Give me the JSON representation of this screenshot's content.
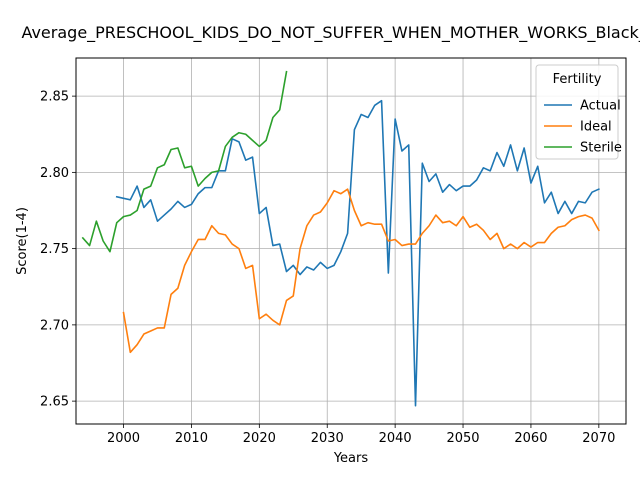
{
  "chart_data": {
    "type": "line",
    "title": "Average_PRESCHOOL_KIDS_DO_NOT_SUFFER_WHEN_MOTHER_WORKS_Black_Men",
    "xlabel": "Years",
    "ylabel": "Score(1-4)",
    "xlim": [
      1993,
      2074
    ],
    "ylim": [
      2.635,
      2.875
    ],
    "xticks": [
      2000,
      2010,
      2020,
      2030,
      2040,
      2050,
      2060,
      2070
    ],
    "yticks": [
      2.65,
      2.7,
      2.75,
      2.8,
      2.85
    ],
    "ytick_labels": [
      "2.65",
      "2.70",
      "2.75",
      "2.80",
      "2.85"
    ],
    "grid": true,
    "legend": {
      "title": "Fertility",
      "placement": "top-right"
    },
    "series": [
      {
        "name": "Actual",
        "color": "#1f77b4",
        "x": [
          1999,
          2000,
          2001,
          2002,
          2003,
          2004,
          2005,
          2006,
          2007,
          2008,
          2009,
          2010,
          2011,
          2012,
          2013,
          2014,
          2015,
          2016,
          2017,
          2018,
          2019,
          2020,
          2021,
          2022,
          2023,
          2024,
          2025,
          2026,
          2027,
          2028,
          2029,
          2030,
          2031,
          2032,
          2033,
          2034,
          2035,
          2036,
          2037,
          2038,
          2039,
          2040,
          2041,
          2042,
          2043,
          2044,
          2045,
          2046,
          2047,
          2048,
          2049,
          2050,
          2051,
          2052,
          2053,
          2054,
          2055,
          2056,
          2057,
          2058,
          2059,
          2060,
          2061,
          2062,
          2063,
          2064,
          2065,
          2066,
          2067,
          2068,
          2069,
          2070
        ],
        "y": [
          2.784,
          2.783,
          2.782,
          2.791,
          2.777,
          2.782,
          2.768,
          2.772,
          2.776,
          2.781,
          2.777,
          2.779,
          2.786,
          2.79,
          2.79,
          2.801,
          2.801,
          2.822,
          2.82,
          2.808,
          2.81,
          2.773,
          2.777,
          2.752,
          2.753,
          2.735,
          2.739,
          2.733,
          2.738,
          2.736,
          2.741,
          2.737,
          2.739,
          2.748,
          2.76,
          2.828,
          2.838,
          2.836,
          2.844,
          2.847,
          2.734,
          2.835,
          2.814,
          2.818,
          2.647,
          2.806,
          2.794,
          2.799,
          2.787,
          2.792,
          2.788,
          2.791,
          2.791,
          2.795,
          2.803,
          2.801,
          2.813,
          2.804,
          2.818,
          2.801,
          2.816,
          2.793,
          2.804,
          2.78,
          2.787,
          2.773,
          2.781,
          2.773,
          2.781,
          2.78,
          2.787,
          2.789
        ]
      },
      {
        "name": "Ideal",
        "color": "#ff7f0e",
        "x": [
          2000,
          2001,
          2002,
          2003,
          2004,
          2005,
          2006,
          2007,
          2008,
          2009,
          2010,
          2011,
          2012,
          2013,
          2014,
          2015,
          2016,
          2017,
          2018,
          2019,
          2020,
          2021,
          2022,
          2023,
          2024,
          2025,
          2026,
          2027,
          2028,
          2029,
          2030,
          2031,
          2032,
          2033,
          2034,
          2035,
          2036,
          2037,
          2038,
          2039,
          2040,
          2041,
          2042,
          2043,
          2044,
          2045,
          2046,
          2047,
          2048,
          2049,
          2050,
          2051,
          2052,
          2053,
          2054,
          2055,
          2056,
          2057,
          2058,
          2059,
          2060,
          2061,
          2062,
          2063,
          2064,
          2065,
          2066,
          2067,
          2068,
          2069,
          2070
        ],
        "y": [
          2.708,
          2.682,
          2.687,
          2.694,
          2.696,
          2.698,
          2.698,
          2.72,
          2.724,
          2.739,
          2.748,
          2.756,
          2.756,
          2.765,
          2.76,
          2.759,
          2.753,
          2.75,
          2.737,
          2.739,
          2.704,
          2.707,
          2.703,
          2.7,
          2.716,
          2.719,
          2.75,
          2.765,
          2.772,
          2.774,
          2.78,
          2.788,
          2.786,
          2.789,
          2.775,
          2.765,
          2.767,
          2.766,
          2.766,
          2.755,
          2.756,
          2.752,
          2.753,
          2.753,
          2.76,
          2.765,
          2.772,
          2.767,
          2.768,
          2.765,
          2.771,
          2.764,
          2.766,
          2.762,
          2.756,
          2.76,
          2.75,
          2.753,
          2.75,
          2.754,
          2.751,
          2.754,
          2.754,
          2.76,
          2.764,
          2.765,
          2.769,
          2.771,
          2.772,
          2.77,
          2.762
        ]
      },
      {
        "name": "Sterile",
        "color": "#2ca02c",
        "x": [
          1994,
          1995,
          1996,
          1997,
          1998,
          1999,
          2000,
          2001,
          2002,
          2003,
          2004,
          2005,
          2006,
          2007,
          2008,
          2009,
          2010,
          2011,
          2012,
          2013,
          2014,
          2015,
          2016,
          2017,
          2018,
          2019,
          2020,
          2021,
          2022,
          2023,
          2024
        ],
        "y": [
          2.757,
          2.752,
          2.768,
          2.755,
          2.748,
          2.767,
          2.771,
          2.772,
          2.775,
          2.789,
          2.791,
          2.803,
          2.805,
          2.815,
          2.816,
          2.803,
          2.804,
          2.791,
          2.796,
          2.8,
          2.801,
          2.817,
          2.823,
          2.826,
          2.825,
          2.821,
          2.817,
          2.821,
          2.836,
          2.841,
          2.866
        ]
      }
    ]
  }
}
